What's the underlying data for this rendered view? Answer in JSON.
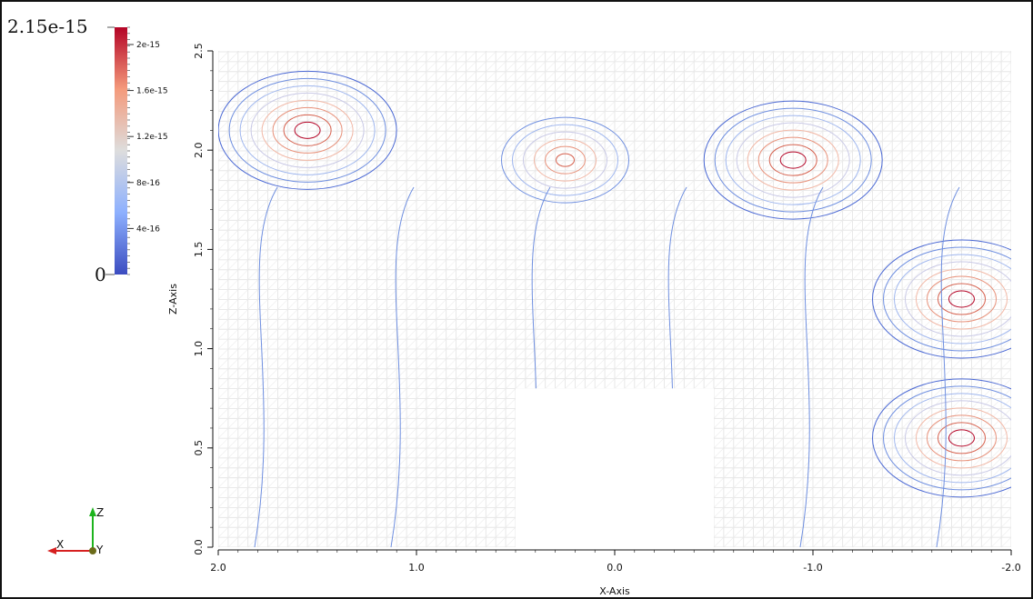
{
  "chart_data": {
    "type": "contour",
    "x_axis": {
      "label": "X-Axis",
      "lim": [
        2.0,
        -2.0
      ],
      "ticks": [
        "2.0",
        "1.0",
        "0.0",
        "-1.0",
        "-2.0"
      ],
      "tick_values": [
        2.0,
        1.0,
        0.0,
        -1.0,
        -2.0
      ]
    },
    "z_axis": {
      "label": "Z-Axis",
      "lim": [
        0.0,
        2.5
      ],
      "ticks": [
        "0.0",
        "0.5",
        "1.0",
        "1.5",
        "2.0",
        "2.5"
      ],
      "tick_values": [
        0.0,
        0.5,
        1.0,
        1.5,
        2.0,
        2.5
      ]
    },
    "colorbar": {
      "max_label": "2.15e-15",
      "min_label": "0",
      "range": [
        0,
        2.15e-15
      ],
      "ticks": [
        "2e-15",
        "1.6e-15",
        "1.2e-15",
        "8e-16",
        "4e-16"
      ],
      "tick_values": [
        2e-15,
        1.6e-15,
        1.2e-15,
        8e-16,
        4e-16
      ],
      "colors": [
        "#3b4cc0",
        "#8db0fe",
        "#dddddd",
        "#f49a7b",
        "#b40426"
      ]
    },
    "blank_region": {
      "x": [
        0.5,
        -0.5
      ],
      "z": [
        0.0,
        0.8
      ]
    },
    "hotspots": [
      {
        "x": 1.55,
        "z": 2.1,
        "level": "high"
      },
      {
        "x": -0.9,
        "z": 1.95,
        "level": "high"
      },
      {
        "x": 0.25,
        "z": 1.95,
        "level": "medium"
      },
      {
        "x": -1.75,
        "z": 1.25,
        "level": "high"
      },
      {
        "x": -1.75,
        "z": 0.55,
        "level": "high"
      }
    ],
    "grid": true
  },
  "orientation_axes": {
    "x_label": "X",
    "y_label": "Y",
    "z_label": "Z"
  }
}
